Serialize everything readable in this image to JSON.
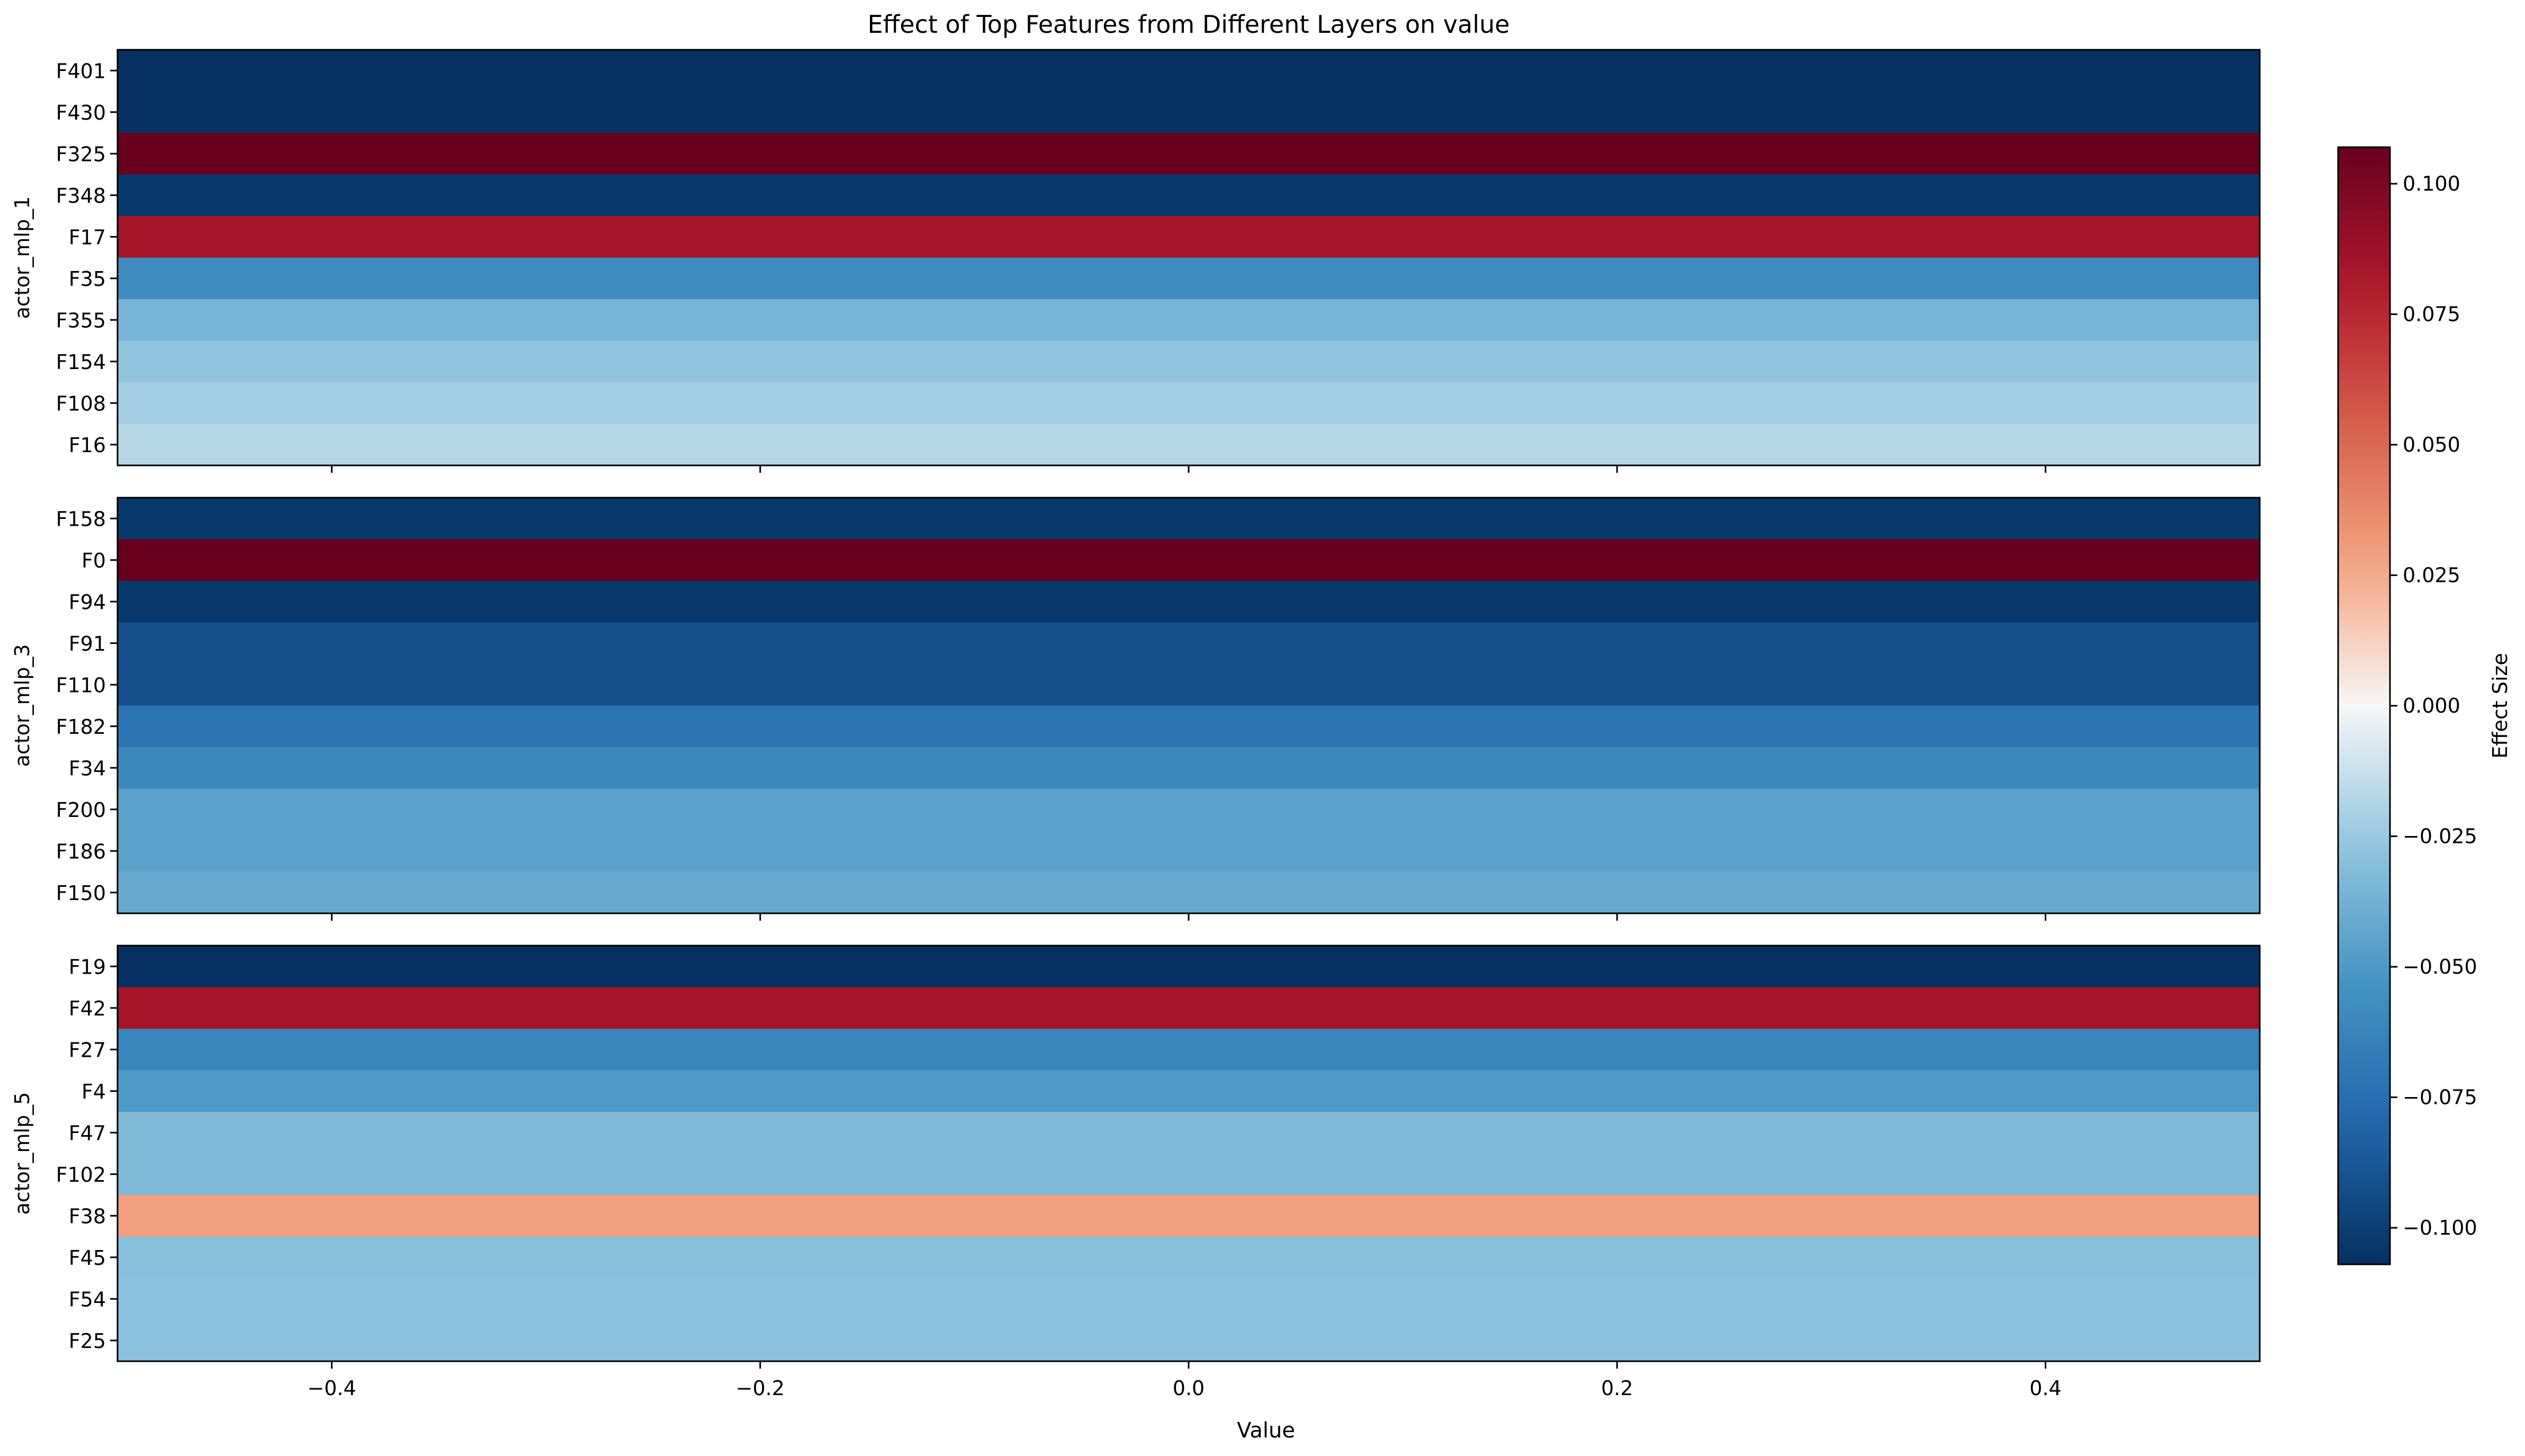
{
  "chart_data": {
    "type": "heatmap",
    "title": "Effect of Top Features from Different Layers on value",
    "xlabel": "Value",
    "xlim": [
      -0.5,
      0.5
    ],
    "xticks": [
      -0.4,
      -0.2,
      0.0,
      0.2,
      0.4
    ],
    "xtick_labels": [
      "−0.4",
      "−0.2",
      "0.0",
      "0.2",
      "0.4"
    ],
    "colormap": "RdBu_r",
    "colorbar": {
      "label": "Effect Size",
      "vmin": -0.107,
      "vmax": 0.107,
      "ticks": [
        0.1,
        0.075,
        0.05,
        0.025,
        0.0,
        -0.025,
        -0.05,
        -0.075,
        -0.1
      ],
      "tick_labels": [
        "0.100",
        "0.075",
        "0.050",
        "0.025",
        "0.000",
        "−0.025",
        "−0.050",
        "−0.075",
        "−0.100"
      ]
    },
    "panels": [
      {
        "ylabel": "actor_mlp_1",
        "features": [
          "F401",
          "F430",
          "F325",
          "F348",
          "F17",
          "F35",
          "F355",
          "F154",
          "F108",
          "F16"
        ],
        "values": [
          -0.107,
          -0.107,
          0.107,
          -0.103,
          0.085,
          -0.058,
          -0.036,
          -0.027,
          -0.022,
          -0.017
        ]
      },
      {
        "ylabel": "actor_mlp_3",
        "features": [
          "F158",
          "F0",
          "F94",
          "F91",
          "F110",
          "F182",
          "F34",
          "F200",
          "F186",
          "F150"
        ],
        "values": [
          -0.103,
          0.107,
          -0.103,
          -0.092,
          -0.092,
          -0.072,
          -0.06,
          -0.046,
          -0.046,
          -0.041
        ]
      },
      {
        "ylabel": "actor_mlp_5",
        "features": [
          "F19",
          "F42",
          "F27",
          "F4",
          "F47",
          "F102",
          "F38",
          "F45",
          "F54",
          "F25"
        ],
        "values": [
          -0.107,
          0.085,
          -0.062,
          -0.05,
          -0.033,
          -0.033,
          0.029,
          -0.03,
          -0.029,
          -0.029
        ]
      }
    ]
  }
}
